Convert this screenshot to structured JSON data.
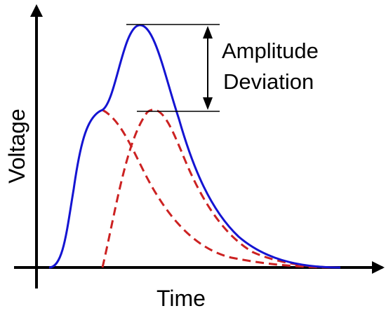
{
  "axes": {
    "x_label": "Time",
    "y_label": "Voltage"
  },
  "annotation": {
    "line1": "Amplitude",
    "line2": "Deviation"
  },
  "colors": {
    "axis": "#000000",
    "sum_curve": "#1414d2",
    "component_curves": "#cc2222",
    "annotation": "#000000"
  },
  "curves": [
    {
      "name": "sum-curve",
      "style": "solid",
      "color_key": "sum_curve"
    },
    {
      "name": "first-pulse-curve",
      "style": "dashed",
      "color_key": "component_curves"
    },
    {
      "name": "second-pulse-curve",
      "style": "dashed",
      "color_key": "component_curves"
    }
  ]
}
